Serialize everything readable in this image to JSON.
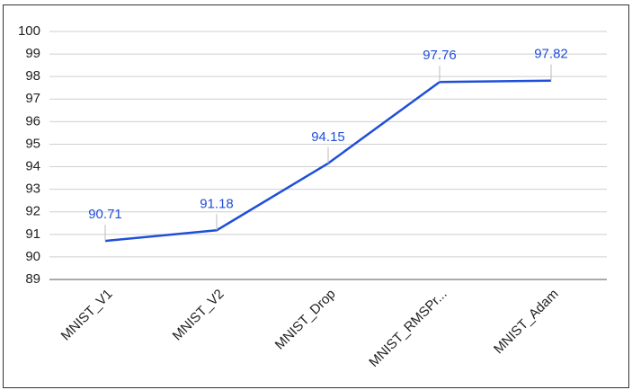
{
  "chart_data": {
    "type": "line",
    "categories": [
      "MNIST_V1",
      "MNIST_V2",
      "MNIST_Drop",
      "MNIST_RMSPr...",
      "MNIST_Adam"
    ],
    "series": [
      {
        "color": "#1f4fd8",
        "values": [
          90.71,
          91.18,
          94.15,
          97.76,
          97.82
        ]
      }
    ],
    "ylim": [
      89,
      100
    ],
    "yticks": [
      89,
      90,
      91,
      92,
      93,
      94,
      95,
      96,
      97,
      98,
      99,
      100
    ],
    "grid": true
  }
}
